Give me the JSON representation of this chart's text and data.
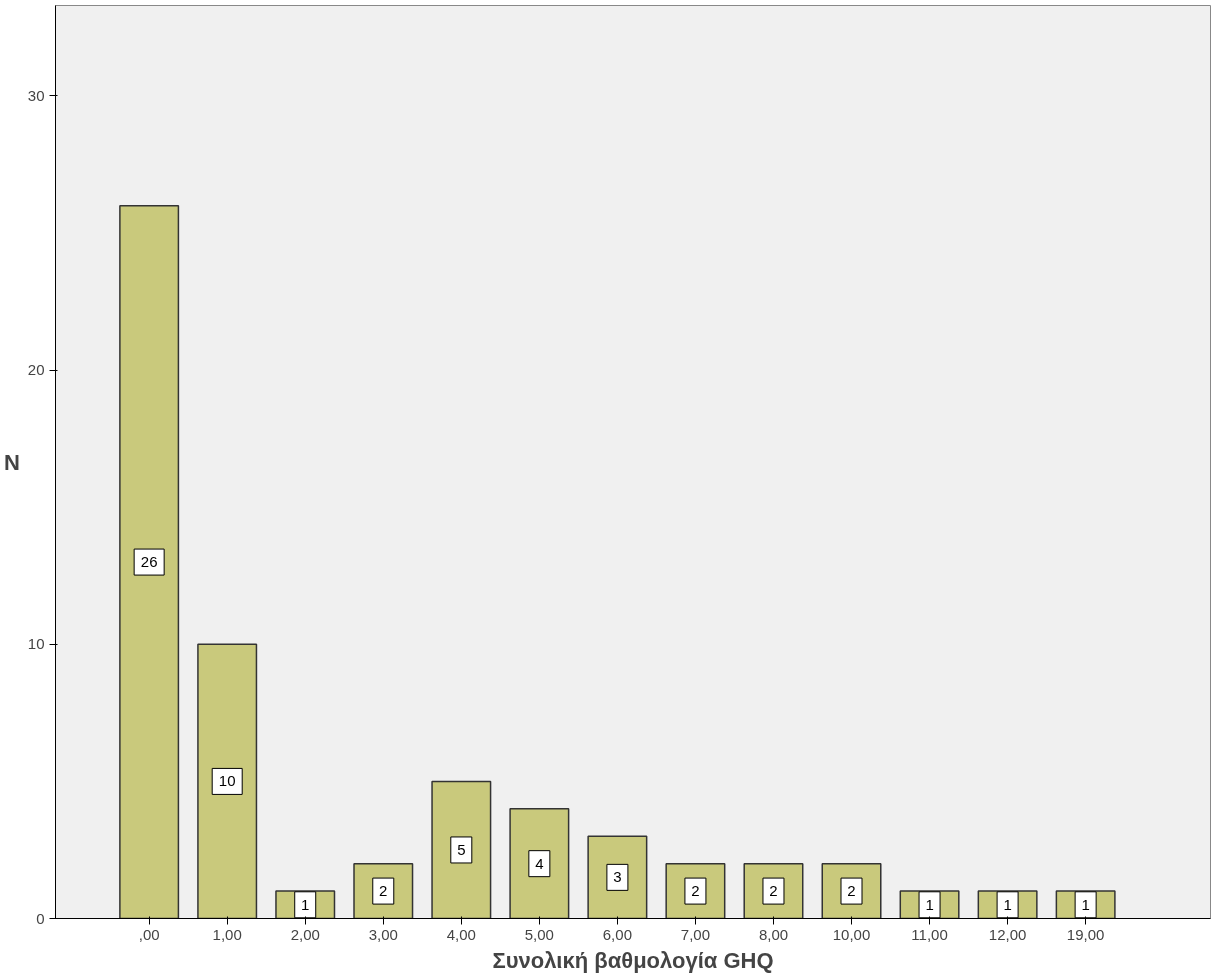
{
  "chart_data": {
    "type": "bar",
    "xlabel": "Συνολική βαθμολογία GHQ",
    "ylabel": "N",
    "categories": [
      ",00",
      "1,00",
      "2,00",
      "3,00",
      "4,00",
      "5,00",
      "6,00",
      "7,00",
      "8,00",
      "10,00",
      "11,00",
      "12,00",
      "19,00"
    ],
    "values": [
      26,
      10,
      1,
      2,
      5,
      4,
      3,
      2,
      2,
      2,
      1,
      1,
      1
    ],
    "color": "#c9c97c",
    "ylim": [
      0,
      33.3
    ],
    "yticks": [
      0,
      10,
      20,
      30
    ],
    "grid": false,
    "data_labels": true
  }
}
